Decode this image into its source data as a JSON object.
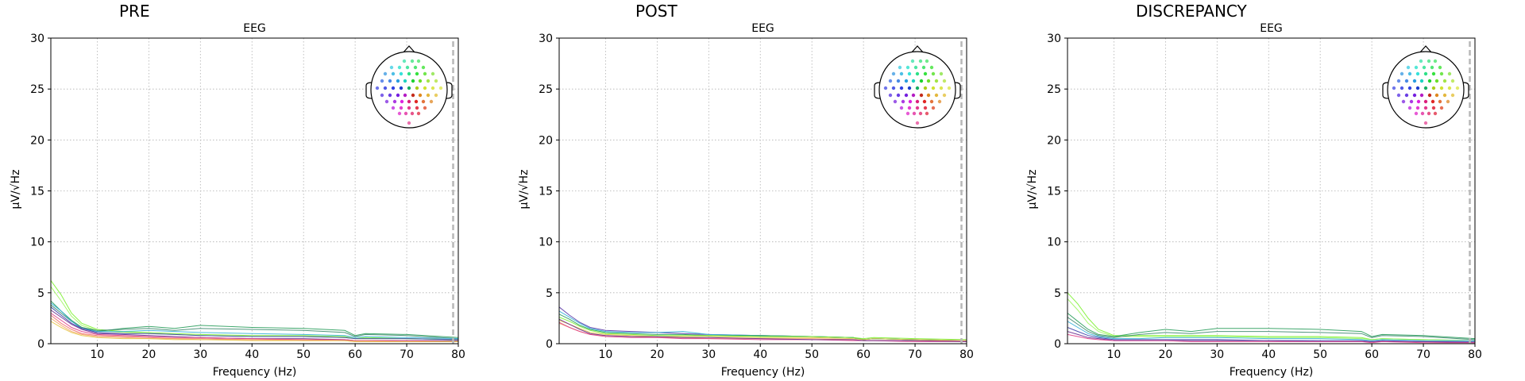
{
  "chart_data": [
    {
      "type": "line",
      "title": "PRE",
      "subtitle": "EEG",
      "xlabel": "Frequency (Hz)",
      "ylabel": "µV/√Hz",
      "xlim": [
        1,
        80
      ],
      "ylim": [
        0,
        30
      ],
      "xticks": [
        10,
        20,
        30,
        40,
        50,
        60,
        70,
        80
      ],
      "yticks": [
        0,
        5,
        10,
        15,
        20,
        25,
        30
      ],
      "grid": true,
      "vline_x": 79,
      "x": [
        1,
        3,
        5,
        7,
        10,
        15,
        20,
        25,
        30,
        40,
        50,
        58,
        60,
        62,
        70,
        80
      ],
      "series": [
        {
          "color": "#7cf230",
          "values": [
            6.2,
            4.8,
            3.0,
            2.0,
            1.4,
            1.2,
            1.1,
            1.0,
            0.9,
            0.8,
            0.8,
            0.7,
            0.5,
            0.6,
            0.5,
            0.4
          ]
        },
        {
          "color": "#9ef560",
          "values": [
            5.6,
            4.2,
            2.7,
            1.8,
            1.3,
            1.1,
            1.0,
            0.9,
            0.8,
            0.7,
            0.7,
            0.6,
            0.5,
            0.5,
            0.5,
            0.4
          ]
        },
        {
          "color": "#2a9d5c",
          "values": [
            4.2,
            3.2,
            2.3,
            1.6,
            1.2,
            1.5,
            1.7,
            1.5,
            1.8,
            1.6,
            1.5,
            1.3,
            0.8,
            1.0,
            0.9,
            0.6
          ]
        },
        {
          "color": "#3d8a6e",
          "values": [
            3.8,
            3.0,
            2.2,
            1.6,
            1.3,
            1.4,
            1.5,
            1.3,
            1.5,
            1.4,
            1.3,
            1.1,
            0.7,
            0.9,
            0.8,
            0.5
          ]
        },
        {
          "color": "#35b0d8",
          "values": [
            4.0,
            3.2,
            2.2,
            1.5,
            1.2,
            1.2,
            1.3,
            1.2,
            1.1,
            1.0,
            0.9,
            0.8,
            0.6,
            0.7,
            0.6,
            0.5
          ]
        },
        {
          "color": "#3b3fa8",
          "values": [
            3.6,
            2.8,
            2.0,
            1.5,
            1.1,
            1.0,
            1.0,
            0.9,
            0.8,
            0.7,
            0.7,
            0.6,
            0.5,
            0.5,
            0.5,
            0.4
          ]
        },
        {
          "color": "#6a2c8f",
          "values": [
            3.3,
            2.6,
            1.9,
            1.4,
            1.0,
            0.9,
            0.8,
            0.7,
            0.6,
            0.5,
            0.5,
            0.4,
            0.3,
            0.3,
            0.3,
            0.3
          ]
        },
        {
          "color": "#e0408a",
          "values": [
            3.0,
            2.3,
            1.6,
            1.2,
            0.9,
            0.8,
            0.7,
            0.6,
            0.6,
            0.5,
            0.4,
            0.4,
            0.3,
            0.3,
            0.3,
            0.2
          ]
        },
        {
          "color": "#f07070",
          "values": [
            2.8,
            2.0,
            1.4,
            1.0,
            0.8,
            0.7,
            0.6,
            0.5,
            0.5,
            0.4,
            0.4,
            0.3,
            0.3,
            0.3,
            0.2,
            0.2
          ]
        },
        {
          "color": "#f3a868",
          "values": [
            2.5,
            1.8,
            1.2,
            0.9,
            0.7,
            0.6,
            0.5,
            0.5,
            0.4,
            0.4,
            0.3,
            0.3,
            0.2,
            0.2,
            0.2,
            0.2
          ]
        },
        {
          "color": "#e6c74a",
          "values": [
            2.2,
            1.6,
            1.1,
            0.8,
            0.6,
            0.5,
            0.5,
            0.4,
            0.4,
            0.3,
            0.3,
            0.3,
            0.2,
            0.2,
            0.2,
            0.2
          ]
        }
      ]
    },
    {
      "type": "line",
      "title": "POST",
      "subtitle": "EEG",
      "xlabel": "Frequency (Hz)",
      "ylabel": "µV/√Hz",
      "xlim": [
        1,
        80
      ],
      "ylim": [
        0,
        30
      ],
      "xticks": [
        10,
        20,
        30,
        40,
        50,
        60,
        70,
        80
      ],
      "yticks": [
        0,
        5,
        10,
        15,
        20,
        25,
        30
      ],
      "grid": true,
      "vline_x": 79,
      "x": [
        1,
        3,
        5,
        7,
        10,
        15,
        20,
        25,
        30,
        40,
        50,
        58,
        60,
        62,
        70,
        80
      ],
      "series": [
        {
          "color": "#5b3aa8",
          "values": [
            3.6,
            2.8,
            2.1,
            1.6,
            1.3,
            1.2,
            1.1,
            1.0,
            0.9,
            0.8,
            0.7,
            0.6,
            0.4,
            0.5,
            0.4,
            0.3
          ]
        },
        {
          "color": "#35b0d8",
          "values": [
            3.2,
            2.6,
            2.0,
            1.5,
            1.2,
            1.1,
            1.1,
            1.2,
            0.9,
            0.8,
            0.7,
            0.6,
            0.4,
            0.5,
            0.4,
            0.3
          ]
        },
        {
          "color": "#2a9d5c",
          "values": [
            2.9,
            2.4,
            1.8,
            1.4,
            1.1,
            1.0,
            0.9,
            0.9,
            0.8,
            0.8,
            0.7,
            0.6,
            0.4,
            0.5,
            0.4,
            0.3
          ]
        },
        {
          "color": "#7cf230",
          "values": [
            2.6,
            2.2,
            1.7,
            1.3,
            1.0,
            0.9,
            0.8,
            0.8,
            0.8,
            0.7,
            0.7,
            0.6,
            0.5,
            0.6,
            0.5,
            0.4
          ]
        },
        {
          "color": "#e6c74a",
          "values": [
            2.3,
            1.9,
            1.5,
            1.1,
            0.9,
            0.8,
            0.7,
            0.7,
            0.7,
            0.6,
            0.6,
            0.5,
            0.4,
            0.5,
            0.4,
            0.3
          ]
        },
        {
          "color": "#f3a868",
          "values": [
            2.0,
            1.6,
            1.2,
            0.9,
            0.8,
            0.7,
            0.6,
            0.6,
            0.5,
            0.5,
            0.5,
            0.4,
            0.3,
            0.3,
            0.3,
            0.3
          ]
        },
        {
          "color": "#e0408a",
          "values": [
            2.1,
            1.6,
            1.2,
            0.9,
            0.7,
            0.6,
            0.6,
            0.5,
            0.5,
            0.4,
            0.4,
            0.3,
            0.3,
            0.3,
            0.2,
            0.2
          ]
        },
        {
          "color": "#6a2c8f",
          "values": [
            2.4,
            1.9,
            1.4,
            1.0,
            0.8,
            0.7,
            0.7,
            0.6,
            0.6,
            0.5,
            0.4,
            0.4,
            0.3,
            0.3,
            0.3,
            0.2
          ]
        }
      ]
    },
    {
      "type": "line",
      "title": "DISCREPANCY",
      "subtitle": "EEG",
      "xlabel": "Frequency (Hz)",
      "ylabel": "µV/√Hz",
      "xlim": [
        1,
        80
      ],
      "ylim": [
        0,
        30
      ],
      "xticks": [
        10,
        20,
        30,
        40,
        50,
        60,
        70,
        80
      ],
      "yticks": [
        0,
        5,
        10,
        15,
        20,
        25,
        30
      ],
      "grid": true,
      "vline_x": 79,
      "x": [
        1,
        3,
        5,
        7,
        10,
        15,
        20,
        25,
        30,
        40,
        50,
        58,
        60,
        62,
        70,
        80
      ],
      "series": [
        {
          "color": "#7cf230",
          "values": [
            5.0,
            3.9,
            2.5,
            1.4,
            0.8,
            0.8,
            0.8,
            0.8,
            0.8,
            0.7,
            0.7,
            0.6,
            0.4,
            0.5,
            0.4,
            0.3
          ]
        },
        {
          "color": "#9ef560",
          "values": [
            4.4,
            3.3,
            2.0,
            1.2,
            0.7,
            0.7,
            0.7,
            0.7,
            0.7,
            0.6,
            0.6,
            0.5,
            0.4,
            0.5,
            0.4,
            0.3
          ]
        },
        {
          "color": "#2a9d5c",
          "values": [
            3.0,
            2.2,
            1.4,
            0.9,
            0.7,
            1.1,
            1.4,
            1.2,
            1.5,
            1.5,
            1.4,
            1.2,
            0.7,
            0.9,
            0.8,
            0.5
          ]
        },
        {
          "color": "#3d8a6e",
          "values": [
            2.6,
            1.9,
            1.2,
            0.8,
            0.6,
            0.9,
            1.1,
            1.0,
            1.2,
            1.2,
            1.1,
            1.0,
            0.6,
            0.8,
            0.7,
            0.4
          ]
        },
        {
          "color": "#35b0d8",
          "values": [
            2.2,
            1.6,
            1.0,
            0.7,
            0.5,
            0.5,
            0.6,
            0.6,
            0.6,
            0.5,
            0.5,
            0.4,
            0.3,
            0.4,
            0.3,
            0.3
          ]
        },
        {
          "color": "#3b3fa8",
          "values": [
            1.6,
            1.2,
            0.8,
            0.6,
            0.4,
            0.4,
            0.4,
            0.4,
            0.4,
            0.3,
            0.3,
            0.3,
            0.2,
            0.3,
            0.2,
            0.2
          ]
        },
        {
          "color": "#6a2c8f",
          "values": [
            1.2,
            0.9,
            0.6,
            0.5,
            0.3,
            0.3,
            0.3,
            0.3,
            0.3,
            0.3,
            0.2,
            0.2,
            0.2,
            0.2,
            0.2,
            0.1
          ]
        },
        {
          "color": "#e0408a",
          "values": [
            0.9,
            0.7,
            0.5,
            0.4,
            0.3,
            0.3,
            0.3,
            0.2,
            0.2,
            0.2,
            0.2,
            0.2,
            0.1,
            0.2,
            0.1,
            0.1
          ]
        }
      ]
    }
  ]
}
